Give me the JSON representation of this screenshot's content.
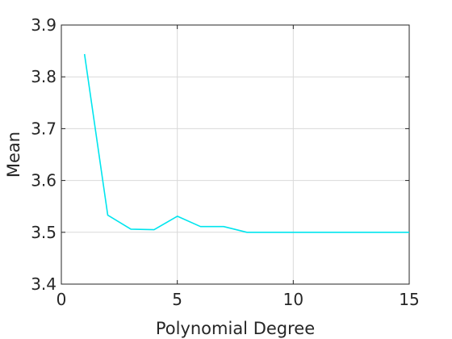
{
  "chart_data": {
    "type": "line",
    "title": "",
    "xlabel": "Polynomial Degree",
    "ylabel": "Mean",
    "xlim": [
      0,
      15
    ],
    "ylim": [
      3.4,
      3.9
    ],
    "xticks": [
      0,
      5,
      10,
      15
    ],
    "yticks": [
      3.4,
      3.5,
      3.6,
      3.7,
      3.8,
      3.9
    ],
    "xtick_labels": [
      "0",
      "5",
      "10",
      "15"
    ],
    "ytick_labels": [
      "3.4",
      "3.5",
      "3.6",
      "3.7",
      "3.8",
      "3.9"
    ],
    "grid": true,
    "series": [
      {
        "color": "#00e5ee",
        "x": [
          1,
          2,
          3,
          4,
          5,
          6,
          7,
          8,
          9,
          10,
          11,
          12,
          13,
          14,
          15
        ],
        "y": [
          3.844,
          3.533,
          3.506,
          3.505,
          3.531,
          3.511,
          3.511,
          3.5,
          3.5,
          3.5,
          3.5,
          3.5,
          3.5,
          3.5,
          3.5
        ]
      }
    ]
  }
}
